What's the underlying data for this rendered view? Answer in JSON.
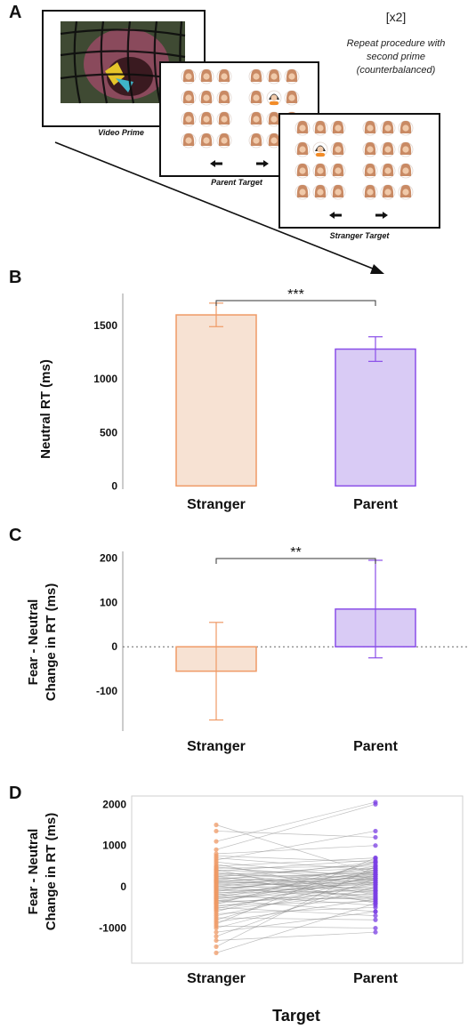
{
  "panel_labels": [
    "A",
    "B",
    "C",
    "D"
  ],
  "panel_a": {
    "repeat_marker": "[x2]",
    "repeat_note": [
      "Repeat procedure with",
      "second prime",
      "(counterbalanced)"
    ],
    "captions": {
      "video": "Video Prime",
      "parent": "Parent Target",
      "stranger": "Stranger Target"
    },
    "colors": {
      "frame": "#111111",
      "face_hair": "#c98a64",
      "face_skin": "#f0c9a9",
      "target_hair_dark": "#2a2a2a",
      "target_shirt": "#f28c28"
    },
    "icons": [
      "left-arrow-icon",
      "right-arrow-icon",
      "face-icon"
    ]
  },
  "x_axis_title": "Target",
  "chart_data": [
    {
      "panel": "B",
      "type": "bar",
      "categories": [
        "Stranger",
        "Parent"
      ],
      "values": [
        1600,
        1280
      ],
      "error": [
        [
          1490,
          1710
        ],
        [
          1165,
          1395
        ]
      ],
      "ylabel": "Neutral RT (ms)",
      "ylim": [
        -30,
        1800
      ],
      "yticks": [
        0,
        500,
        1000,
        1500
      ],
      "ytick_labels": [
        "0",
        "500",
        "1000",
        "1500"
      ],
      "significance": "***",
      "colors": {
        "Stranger": {
          "fill": "#f7e2d3",
          "stroke": "#ef9a66"
        },
        "Parent": {
          "fill": "#d9cbf5",
          "stroke": "#8a4ee8"
        }
      }
    },
    {
      "panel": "C",
      "type": "bar",
      "categories": [
        "Stranger",
        "Parent"
      ],
      "values": [
        -55,
        85
      ],
      "error": [
        [
          -165,
          55
        ],
        [
          -25,
          195
        ]
      ],
      "ylabel": [
        "Fear - Neutral",
        "Change in RT (ms)"
      ],
      "ylim": [
        -190,
        215
      ],
      "yticks": [
        -100,
        0,
        100,
        200
      ],
      "ytick_labels": [
        "-100",
        "0",
        "100",
        "200"
      ],
      "zero_line": "dotted",
      "significance": "**",
      "colors": {
        "Stranger": {
          "fill": "#f7e2d3",
          "stroke": "#ef9a66"
        },
        "Parent": {
          "fill": "#d9cbf5",
          "stroke": "#8a4ee8"
        }
      }
    },
    {
      "panel": "D",
      "type": "scatter",
      "categories": [
        "Stranger",
        "Parent"
      ],
      "ylabel": [
        "Fear - Neutral",
        "Change in RT (ms)"
      ],
      "xlabel": "Target",
      "ylim": [
        -1850,
        2200
      ],
      "yticks": [
        -1000,
        0,
        1000,
        2000
      ],
      "ytick_labels": [
        "-1000",
        "0",
        "1000",
        "2000"
      ],
      "paired_lines": true,
      "colors": {
        "Stranger": "#ef9a66",
        "Parent": "#7b3fe4",
        "line": "#888888"
      },
      "pairs": [
        [
          1500,
          300
        ],
        [
          1350,
          1200
        ],
        [
          1100,
          2050
        ],
        [
          900,
          2000
        ],
        [
          800,
          1000
        ],
        [
          750,
          600
        ],
        [
          700,
          400
        ],
        [
          650,
          1350
        ],
        [
          600,
          200
        ],
        [
          550,
          -200
        ],
        [
          500,
          700
        ],
        [
          480,
          150
        ],
        [
          450,
          500
        ],
        [
          420,
          -400
        ],
        [
          400,
          300
        ],
        [
          380,
          650
        ],
        [
          350,
          100
        ],
        [
          330,
          -100
        ],
        [
          300,
          450
        ],
        [
          280,
          250
        ],
        [
          260,
          -300
        ],
        [
          240,
          550
        ],
        [
          220,
          50
        ],
        [
          200,
          350
        ],
        [
          180,
          -150
        ],
        [
          160,
          600
        ],
        [
          150,
          200
        ],
        [
          130,
          -50
        ],
        [
          110,
          400
        ],
        [
          100,
          150
        ],
        [
          80,
          -250
        ],
        [
          60,
          300
        ],
        [
          40,
          100
        ],
        [
          20,
          -350
        ],
        [
          0,
          450
        ],
        [
          -20,
          50
        ],
        [
          -40,
          250
        ],
        [
          -60,
          -200
        ],
        [
          -80,
          350
        ],
        [
          -100,
          0
        ],
        [
          -120,
          500
        ],
        [
          -140,
          -100
        ],
        [
          -160,
          200
        ],
        [
          -180,
          -450
        ],
        [
          -200,
          300
        ],
        [
          -220,
          100
        ],
        [
          -240,
          -300
        ],
        [
          -260,
          400
        ],
        [
          -280,
          -50
        ],
        [
          -300,
          200
        ],
        [
          -320,
          -600
        ],
        [
          -340,
          150
        ],
        [
          -360,
          -250
        ],
        [
          -380,
          350
        ],
        [
          -400,
          -100
        ],
        [
          -420,
          600
        ],
        [
          -450,
          -350
        ],
        [
          -480,
          50
        ],
        [
          -500,
          -700
        ],
        [
          -530,
          250
        ],
        [
          -560,
          -150
        ],
        [
          -600,
          400
        ],
        [
          -650,
          -500
        ],
        [
          -700,
          100
        ],
        [
          -750,
          -800
        ],
        [
          -800,
          300
        ],
        [
          -850,
          -300
        ],
        [
          -900,
          700
        ],
        [
          -950,
          -1000
        ],
        [
          -1000,
          0
        ],
        [
          -1100,
          -600
        ],
        [
          -1200,
          200
        ],
        [
          -1300,
          -1100
        ],
        [
          -1450,
          500
        ],
        [
          -1600,
          -400
        ]
      ]
    }
  ]
}
